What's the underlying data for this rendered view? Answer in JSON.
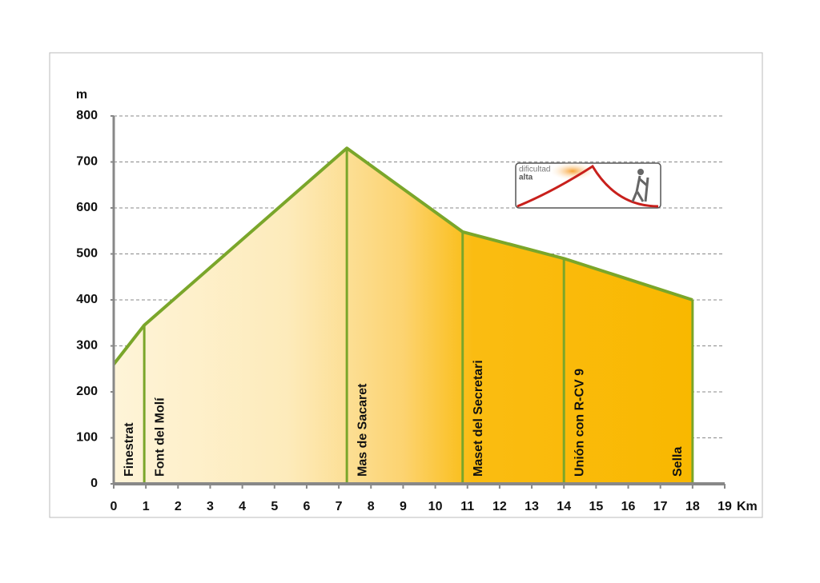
{
  "chart_data": {
    "type": "area",
    "x": [
      0,
      0.95,
      7.25,
      10.85,
      14,
      18
    ],
    "values": [
      260,
      345,
      730,
      548,
      490,
      400
    ],
    "labels": [
      "Finestrat",
      "Font del Molí",
      "Mas de Sacaret",
      "Maset del Secretari",
      "Unión con R-CV 9",
      "Sella"
    ],
    "color": "#7aa62a",
    "xlabel": "Km",
    "ylabel": "m",
    "xlim": [
      0,
      19
    ],
    "xticks": [
      0,
      1,
      2,
      3,
      4,
      5,
      6,
      7,
      8,
      9,
      10,
      11,
      12,
      13,
      14,
      15,
      16,
      17,
      18,
      19
    ],
    "ylim": [
      0,
      800
    ],
    "yticks": [
      0,
      100,
      200,
      300,
      400,
      500,
      600,
      700,
      800
    ],
    "grid": true,
    "badge": {
      "line1": "dificultad",
      "line2": "alta"
    }
  }
}
